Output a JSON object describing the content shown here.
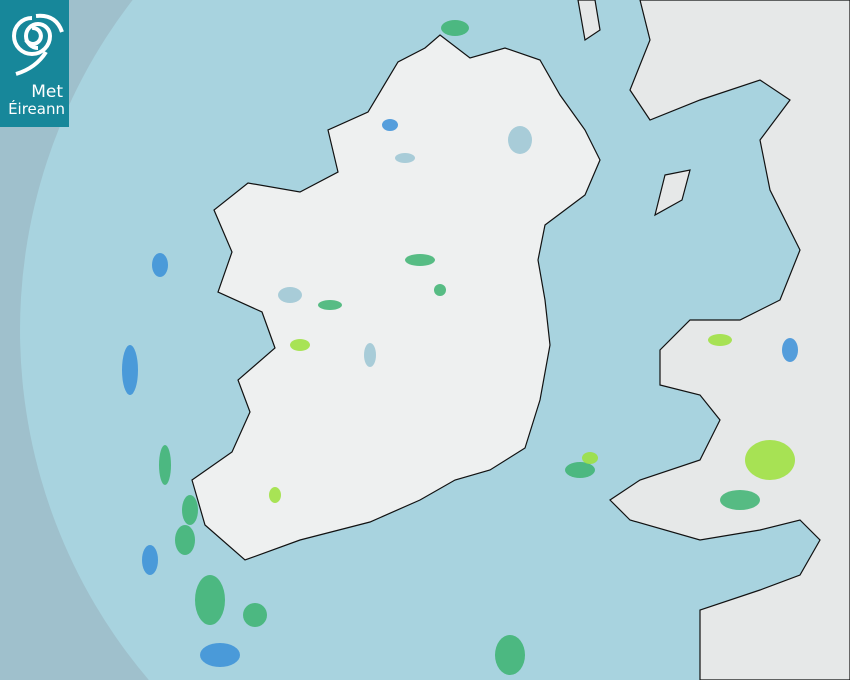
{
  "brand": {
    "line1": "Met",
    "line2": "Éireann",
    "color": "#17879a"
  },
  "map": {
    "type": "rainfall radar",
    "colors": {
      "ocean_outside_coverage": "#9fc0cc",
      "ocean_radar_coverage": "#a8d3df",
      "land": "#eef0f0",
      "lakes": "#a8ccd8",
      "rain_light": "#3a8fd8",
      "rain_moderate": "#3cb371",
      "rain_heavy": "#9be03a"
    }
  }
}
